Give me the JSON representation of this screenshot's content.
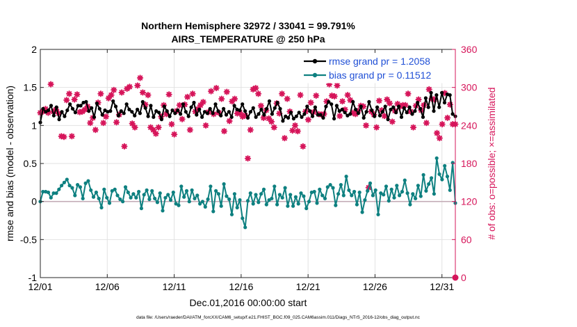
{
  "chart_data": {
    "type": "line",
    "title_line1": "Northern Hemisphere 32972 / 33041 = 99.791%",
    "title_line2": "AIRS_TEMPERATURE @ 250 hPa",
    "xlabel": "Dec.01,2016 00:00:00 start",
    "ylabel": "rmse and bias (model - observation)",
    "y2label": "# of obs: o=possible; ×=assimilated",
    "footnote": "data file: /Users/raeder/DAI/ATM_forcXX/CAM6_setup/f.e21.FHIST_BGC.f09_025.CAM6assim.011/Diags_NTrS_2016-12/obs_diag_output.nc",
    "xlim": [
      0,
      31
    ],
    "ylim": [
      -1,
      2
    ],
    "y2lim": [
      0,
      360
    ],
    "x_ticks": [
      0,
      5,
      10,
      15,
      20,
      25,
      30
    ],
    "x_tick_labels": [
      "12/01",
      "12/06",
      "12/11",
      "12/16",
      "12/21",
      "12/26",
      "12/31"
    ],
    "y_ticks": [
      -1,
      -0.5,
      0,
      0.5,
      1,
      1.5,
      2
    ],
    "y_tick_labels": [
      "-1",
      "-0.5",
      "0",
      "0.5",
      "1",
      "1.5",
      "2"
    ],
    "y2_ticks": [
      0,
      60,
      120,
      180,
      240,
      300,
      360
    ],
    "y2_tick_labels": [
      "0",
      "60",
      "120",
      "180",
      "240",
      "300",
      "360"
    ],
    "grid": true,
    "legend_position": "top-right",
    "colors": {
      "rmse": "#000000",
      "bias": "#0e8080",
      "obs": "#d6155a",
      "axis2": "#d6155a",
      "legend_text": "#1f4fd6",
      "zero_line": "#c0a7b2"
    },
    "series": [
      {
        "name": "rmse grand pr = 1.2058",
        "values": [
          1.04,
          1.22,
          1.18,
          1.2,
          1.26,
          1.13,
          1.24,
          1.08,
          1.18,
          1.12,
          1.2,
          1.28,
          1.22,
          1.17,
          1.26,
          1.26,
          1.3,
          1.31,
          1.19,
          1.23,
          1.11,
          1.29,
          1.22,
          1.14,
          1.2,
          1.18,
          1.19,
          1.32,
          1.25,
          1.13,
          1.19,
          1.16,
          1.28,
          1.21,
          1.18,
          1.13,
          1.21,
          1.16,
          1.31,
          1.23,
          1.12,
          1.26,
          1.11,
          1.19,
          1.17,
          1.08,
          1.25,
          1.19,
          1.12,
          1.2,
          1.16,
          1.2,
          1.15,
          1.28,
          1.18,
          1.12,
          1.24,
          1.3,
          1.14,
          1.21,
          1.11,
          1.18,
          1.16,
          1.22,
          1.16,
          1.28,
          1.19,
          1.13,
          1.22,
          1.14,
          1.18,
          1.11,
          1.26,
          1.21,
          1.2,
          1.28,
          1.19,
          1.1,
          1.18,
          1.23,
          1.11,
          1.15,
          1.21,
          1.14,
          1.22,
          1.32,
          1.15,
          1.23,
          1.3,
          1.22,
          1.06,
          1.12,
          1.1,
          1.17,
          1.09,
          1.12,
          1.17,
          1.11,
          1.15,
          1.25,
          1.19,
          1.12,
          1.24,
          1.14,
          1.14,
          1.1,
          1.25,
          1.31,
          1.28,
          1.09,
          1.26,
          1.19,
          1.21,
          1.17,
          1.13,
          1.15,
          1.31,
          1.21,
          1.16,
          1.25,
          1.1,
          1.18,
          1.31,
          1.2,
          1.12,
          1.24,
          1.13,
          1.18,
          1.25,
          1.08,
          1.21,
          1.24,
          1.17,
          1.25,
          1.11,
          1.23,
          1.17,
          1.24,
          1.15,
          1.19,
          1.3,
          1.22,
          1.11,
          1.36,
          1.24,
          1.43,
          1.19,
          1.4,
          1.24,
          1.43,
          1.3,
          1.41,
          1.4,
          1.15,
          1.12
        ]
      },
      {
        "name": "bias grand pr = 0.11512",
        "values": [
          0.0,
          0.13,
          0.13,
          0.12,
          0.05,
          0.11,
          0.11,
          0.16,
          0.21,
          0.25,
          0.29,
          0.21,
          0.18,
          0.08,
          0.22,
          0.19,
          0.04,
          0.24,
          0.27,
          0.15,
          0.06,
          0.12,
          0.04,
          -0.08,
          0.16,
          0.05,
          -0.02,
          0.14,
          0.16,
          0.08,
          0.03,
          0.0,
          0.19,
          0.12,
          0.05,
          0.1,
          0.05,
          0.13,
          -0.09,
          0.09,
          0.15,
          0.03,
          0.14,
          0.04,
          -0.01,
          0.11,
          -0.12,
          0.05,
          0.09,
          0.02,
          0.12,
          -0.03,
          -0.05,
          0.2,
          0.06,
          0.14,
          0.0,
          0.15,
          0.04,
          0.08,
          -0.03,
          0.0,
          -0.07,
          0.03,
          0.2,
          -0.13,
          0.14,
          0.1,
          -0.06,
          0.23,
          0.07,
          0.03,
          -0.17,
          0.1,
          -0.08,
          0.02,
          -0.22,
          -0.34,
          0.01,
          0.11,
          -0.03,
          0.09,
          -0.01,
          0.1,
          0.16,
          -0.04,
          0.02,
          0.04,
          0.2,
          -0.04,
          0.09,
          0.05,
          0.18,
          -0.06,
          0.09,
          -0.06,
          0.06,
          -0.03,
          0.11,
          0.07,
          -0.09,
          0.0,
          0.12,
          0.13,
          -0.02,
          0.16,
          0.08,
          0.04,
          0.19,
          0.22,
          0.18,
          -0.05,
          0.1,
          0.22,
          0.08,
          0.33,
          0.15,
          0.08,
          0.13,
          -0.04,
          0.12,
          -0.14,
          0.02,
          0.14,
          0.24,
          0.08,
          0.15,
          -0.17,
          0.11,
          0.09,
          0.2,
          0.01,
          0.16,
          0.05,
          0.21,
          0.08,
          0.13,
          0.28,
          0.11,
          -0.04,
          0.1,
          0.04,
          0.21,
          0.07,
          0.35,
          0.14,
          0.23,
          0.31,
          0.1,
          0.57,
          0.36,
          0.29,
          0.47,
          0.33,
          0.15,
          0.51,
          -0.02
        ]
      }
    ],
    "obs_assimilated": [
      260,
      262,
      266,
      260,
      305,
      262,
      265,
      259,
      223,
      222,
      280,
      290,
      223,
      281,
      289,
      261,
      262,
      265,
      270,
      244,
      252,
      233,
      276,
      290,
      244,
      254,
      283,
      288,
      296,
      245,
      257,
      292,
      207,
      298,
      301,
      243,
      237,
      303,
      315,
      292,
      273,
      288,
      237,
      233,
      227,
      237,
      254,
      272,
      258,
      289,
      242,
      226,
      263,
      272,
      250,
      273,
      285,
      233,
      290,
      262,
      266,
      272,
      277,
      240,
      261,
      294,
      258,
      299,
      260,
      282,
      231,
      293,
      247,
      278,
      282,
      259,
      260,
      254,
      256,
      188,
      233,
      297,
      299,
      290,
      271,
      252,
      264,
      251,
      246,
      237,
      275,
      259,
      290,
      220,
      282,
      262,
      232,
      240,
      231,
      288,
      207,
      262,
      249,
      276,
      261,
      287,
      258,
      257,
      258,
      278,
      305,
      287,
      286,
      303,
      255,
      278,
      265,
      288,
      280,
      260,
      258,
      263,
      271,
      270,
      240,
      142,
      262,
      257,
      237,
      279,
      264,
      255,
      281,
      275,
      246,
      263,
      274,
      270,
      272,
      272,
      290,
      262,
      237,
      271,
      281,
      264,
      272,
      244,
      297,
      282,
      281,
      228,
      220,
      242,
      291,
      252,
      273,
      242,
      242
    ]
  }
}
